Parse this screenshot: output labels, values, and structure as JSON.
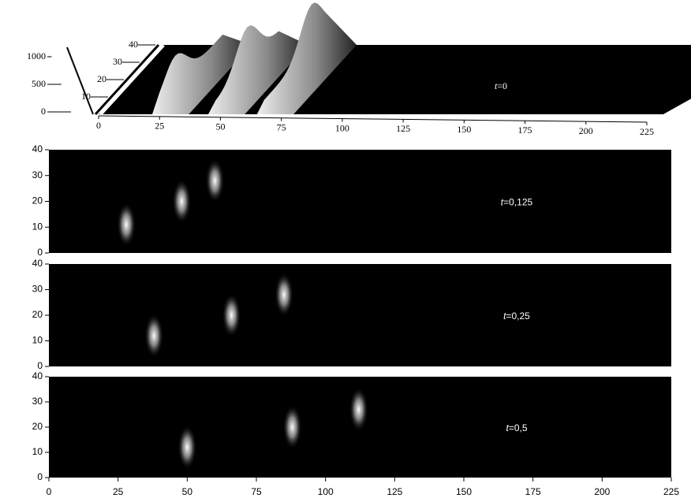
{
  "chart_data": [
    {
      "type": "surface3d",
      "label_var": "t",
      "label_value": "=0",
      "xlim": [
        0,
        225
      ],
      "xticks": [
        0,
        25,
        50,
        75,
        100,
        125,
        150,
        175,
        200,
        225
      ],
      "ylim": [
        0,
        40
      ],
      "yticks": [
        10,
        20,
        30,
        40
      ],
      "zlim": [
        0,
        1000
      ],
      "zticks": [
        0,
        500,
        1000
      ],
      "x": [
        25,
        48,
        68
      ],
      "y": [
        10,
        20,
        30
      ],
      "z": [
        750,
        950,
        1050
      ]
    },
    {
      "type": "heatmap",
      "label_var": "t",
      "label_value": "=0,125",
      "xlim": [
        0,
        225
      ],
      "ylim": [
        0,
        40
      ],
      "yticks": [
        0,
        10,
        20,
        30,
        40
      ],
      "x": [
        28,
        48,
        60
      ],
      "y": [
        11,
        20,
        28
      ]
    },
    {
      "type": "heatmap",
      "label_var": "t",
      "label_value": "=0,25",
      "xlim": [
        0,
        225
      ],
      "ylim": [
        0,
        40
      ],
      "yticks": [
        0,
        10,
        20,
        30,
        40
      ],
      "x": [
        38,
        66,
        85
      ],
      "y": [
        12,
        20,
        28
      ]
    },
    {
      "type": "heatmap",
      "label_var": "t",
      "label_value": "=0,5",
      "xlim": [
        0,
        225
      ],
      "ylim": [
        0,
        40
      ],
      "yticks": [
        0,
        10,
        20,
        30,
        40
      ],
      "xticks": [
        0,
        25,
        50,
        75,
        100,
        125,
        150,
        175,
        200,
        225
      ],
      "x": [
        50,
        88,
        112
      ],
      "y": [
        12,
        20,
        27
      ]
    }
  ]
}
